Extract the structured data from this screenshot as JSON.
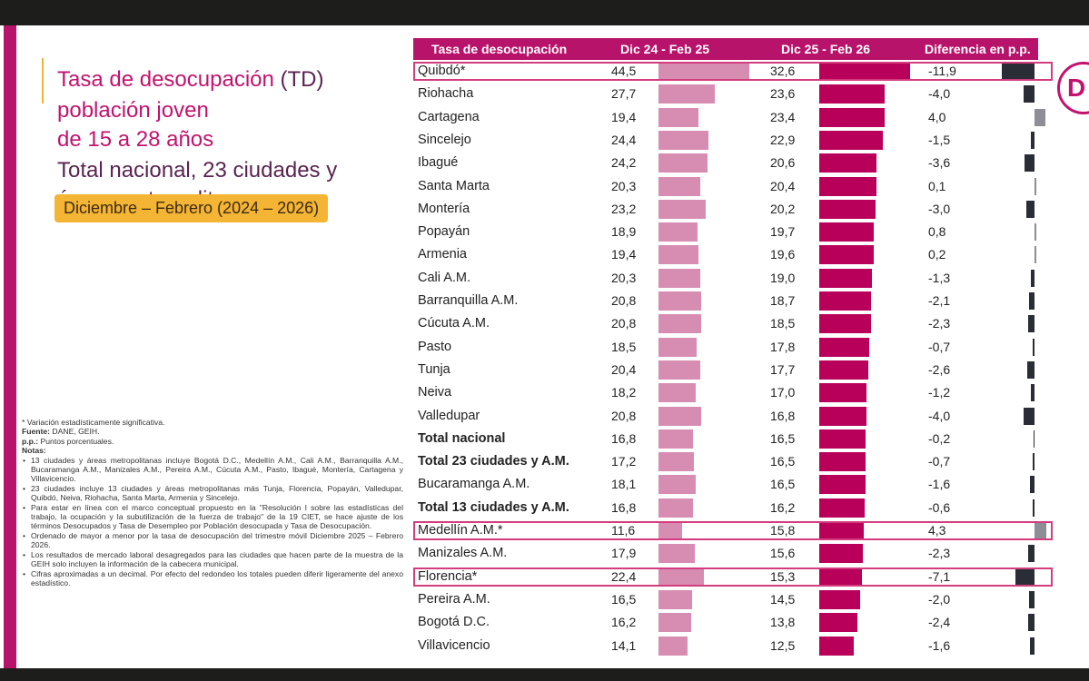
{
  "title": {
    "line1_a": "Tasa de desocupación ",
    "line1_b": "(TD)",
    "line2": "población joven",
    "line3": "de 15 a 28 años",
    "line4": "Total nacional, 23 ciudades y",
    "line5": "áreas metropolitanas"
  },
  "period_label": "Diciembre – Febrero (2024 – 2026)",
  "logo_letter": "D",
  "notes": {
    "sig": "* Variación estadísticamente significativa.",
    "fuente_label": "Fuente:",
    "fuente_text": " DANE, GEIH.",
    "pp_label": "p.p.:",
    "pp_text": " Puntos porcentuales.",
    "notas_label": "Notas:",
    "items": [
      "13 ciudades y áreas metropolitanas incluye Bogotá D.C., Medellín A.M., Cali A.M., Barranquilla A.M., Bucaramanga A.M., Manizales A.M., Pereira A.M., Cúcuta A.M., Pasto, Ibagué, Montería, Cartagena y Villavicencio.",
      "23 ciudades incluye 13 ciudades y áreas metropolitanas más Tunja, Florencia, Popayán, Valledupar, Quibdó, Neiva, Riohacha, Santa Marta, Armenia y Sincelejo.",
      "Para estar en línea con el marco conceptual propuesto en la \"Resolución I sobre las estadísticas del trabajo, la ocupación y la subutilización de la fuerza de trabajo\" de la 19 CIET, se hace ajuste de los términos Desocupados y Tasa de Desempleo por Población desocupada y Tasa de Desocupación.",
      "Ordenado de mayor a menor por la tasa de desocupación del trimestre móvil Diciembre 2025 – Febrero 2026.",
      "Los resultados de mercado laboral desagregados para las ciudades que hacen parte de la muestra de la GEIH solo incluyen la información de la cabecera municipal.",
      "Cifras aproximadas a un decimal. Por efecto del redondeo los totales pueden diferir ligeramente del anexo estadístico."
    ]
  },
  "colors": {
    "magenta": "#b8136a",
    "bar_2025": "#d78db2",
    "bar_2026": "#b8005a",
    "diff_negative": "#2b2d36",
    "diff_positive": "#8e8e96",
    "highlight_border": "#d33d7e",
    "period_bg": "#f4b434"
  },
  "chart_data": {
    "type": "table",
    "headers": [
      "Tasa de desocupación",
      "Dic 24 - Feb 25",
      "Dic 25 - Feb 26",
      "Diferencia en p.p."
    ],
    "rows": [
      {
        "name": "Quibdó*",
        "v1": 44.5,
        "v1_label": "44,5",
        "v2": 32.6,
        "v2_label": "32,6",
        "diff": -11.9,
        "diff_label": "-11,9",
        "bold": false,
        "highlight": true
      },
      {
        "name": "Riohacha",
        "v1": 27.7,
        "v1_label": "27,7",
        "v2": 23.6,
        "v2_label": "23,6",
        "diff": -4.0,
        "diff_label": "-4,0",
        "bold": false,
        "highlight": false
      },
      {
        "name": "Cartagena",
        "v1": 19.4,
        "v1_label": "19,4",
        "v2": 23.4,
        "v2_label": "23,4",
        "diff": 4.0,
        "diff_label": "4,0",
        "bold": false,
        "highlight": false
      },
      {
        "name": "Sincelejo",
        "v1": 24.4,
        "v1_label": "24,4",
        "v2": 22.9,
        "v2_label": "22,9",
        "diff": -1.5,
        "diff_label": "-1,5",
        "bold": false,
        "highlight": false
      },
      {
        "name": "Ibagué",
        "v1": 24.2,
        "v1_label": "24,2",
        "v2": 20.6,
        "v2_label": "20,6",
        "diff": -3.6,
        "diff_label": "-3,6",
        "bold": false,
        "highlight": false
      },
      {
        "name": "Santa Marta",
        "v1": 20.3,
        "v1_label": "20,3",
        "v2": 20.4,
        "v2_label": "20,4",
        "diff": 0.1,
        "diff_label": "0,1",
        "bold": false,
        "highlight": false
      },
      {
        "name": "Montería",
        "v1": 23.2,
        "v1_label": "23,2",
        "v2": 20.2,
        "v2_label": "20,2",
        "diff": -3.0,
        "diff_label": "-3,0",
        "bold": false,
        "highlight": false
      },
      {
        "name": "Popayán",
        "v1": 18.9,
        "v1_label": "18,9",
        "v2": 19.7,
        "v2_label": "19,7",
        "diff": 0.8,
        "diff_label": "0,8",
        "bold": false,
        "highlight": false
      },
      {
        "name": "Armenia",
        "v1": 19.4,
        "v1_label": "19,4",
        "v2": 19.6,
        "v2_label": "19,6",
        "diff": 0.2,
        "diff_label": "0,2",
        "bold": false,
        "highlight": false
      },
      {
        "name": "Cali A.M.",
        "v1": 20.3,
        "v1_label": "20,3",
        "v2": 19.0,
        "v2_label": "19,0",
        "diff": -1.3,
        "diff_label": "-1,3",
        "bold": false,
        "highlight": false
      },
      {
        "name": "Barranquilla A.M.",
        "v1": 20.8,
        "v1_label": "20,8",
        "v2": 18.7,
        "v2_label": "18,7",
        "diff": -2.1,
        "diff_label": "-2,1",
        "bold": false,
        "highlight": false
      },
      {
        "name": "Cúcuta A.M.",
        "v1": 20.8,
        "v1_label": "20,8",
        "v2": 18.5,
        "v2_label": "18,5",
        "diff": -2.3,
        "diff_label": "-2,3",
        "bold": false,
        "highlight": false
      },
      {
        "name": "Pasto",
        "v1": 18.5,
        "v1_label": "18,5",
        "v2": 17.8,
        "v2_label": "17,8",
        "diff": -0.7,
        "diff_label": "-0,7",
        "bold": false,
        "highlight": false
      },
      {
        "name": "Tunja",
        "v1": 20.4,
        "v1_label": "20,4",
        "v2": 17.7,
        "v2_label": "17,7",
        "diff": -2.6,
        "diff_label": "-2,6",
        "bold": false,
        "highlight": false
      },
      {
        "name": "Neiva",
        "v1": 18.2,
        "v1_label": "18,2",
        "v2": 17.0,
        "v2_label": "17,0",
        "diff": -1.2,
        "diff_label": "-1,2",
        "bold": false,
        "highlight": false
      },
      {
        "name": "Valledupar",
        "v1": 20.8,
        "v1_label": "20,8",
        "v2": 16.8,
        "v2_label": "16,8",
        "diff": -4.0,
        "diff_label": "-4,0",
        "bold": false,
        "highlight": false
      },
      {
        "name": "Total nacional",
        "v1": 16.8,
        "v1_label": "16,8",
        "v2": 16.5,
        "v2_label": "16,5",
        "diff": -0.2,
        "diff_label": "-0,2",
        "bold": true,
        "highlight": false
      },
      {
        "name": "Total 23 ciudades y A.M.",
        "v1": 17.2,
        "v1_label": "17,2",
        "v2": 16.5,
        "v2_label": "16,5",
        "diff": -0.7,
        "diff_label": "-0,7",
        "bold": true,
        "highlight": false
      },
      {
        "name": "Bucaramanga A.M.",
        "v1": 18.1,
        "v1_label": "18,1",
        "v2": 16.5,
        "v2_label": "16,5",
        "diff": -1.6,
        "diff_label": "-1,6",
        "bold": false,
        "highlight": false
      },
      {
        "name": "Total 13 ciudades y A.M.",
        "v1": 16.8,
        "v1_label": "16,8",
        "v2": 16.2,
        "v2_label": "16,2",
        "diff": -0.6,
        "diff_label": "-0,6",
        "bold": true,
        "highlight": false
      },
      {
        "name": "Medellín A.M.*",
        "v1": 11.6,
        "v1_label": "11,6",
        "v2": 15.8,
        "v2_label": "15,8",
        "diff": 4.3,
        "diff_label": "4,3",
        "bold": false,
        "highlight": true
      },
      {
        "name": "Manizales A.M.",
        "v1": 17.9,
        "v1_label": "17,9",
        "v2": 15.6,
        "v2_label": "15,6",
        "diff": -2.3,
        "diff_label": "-2,3",
        "bold": false,
        "highlight": false
      },
      {
        "name": "Florencia*",
        "v1": 22.4,
        "v1_label": "22,4",
        "v2": 15.3,
        "v2_label": "15,3",
        "diff": -7.1,
        "diff_label": "-7,1",
        "bold": false,
        "highlight": true
      },
      {
        "name": "Pereira A.M.",
        "v1": 16.5,
        "v1_label": "16,5",
        "v2": 14.5,
        "v2_label": "14,5",
        "diff": -2.0,
        "diff_label": "-2,0",
        "bold": false,
        "highlight": false
      },
      {
        "name": "Bogotá D.C.",
        "v1": 16.2,
        "v1_label": "16,2",
        "v2": 13.8,
        "v2_label": "13,8",
        "diff": -2.4,
        "diff_label": "-2,4",
        "bold": false,
        "highlight": false
      },
      {
        "name": "Villavicencio",
        "v1": 14.1,
        "v1_label": "14,1",
        "v2": 12.5,
        "v2_label": "12,5",
        "diff": -1.6,
        "diff_label": "-1,6",
        "bold": false,
        "highlight": false
      }
    ]
  }
}
